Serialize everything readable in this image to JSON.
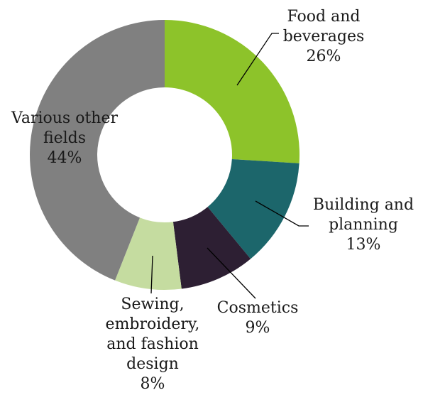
{
  "chart_data": {
    "type": "pie",
    "donut": true,
    "legend": "none",
    "slices": [
      {
        "label": [
          "Food and",
          "beverages"
        ],
        "value": 26,
        "value_label": "26%",
        "color": "#8dc32a"
      },
      {
        "label": [
          "Building and",
          "planning"
        ],
        "value": 13,
        "value_label": "13%",
        "color": "#1c666b"
      },
      {
        "label": [
          "Cosmetics"
        ],
        "value": 9,
        "value_label": "9%",
        "color": "#2d1f33"
      },
      {
        "label": [
          "Sewing,",
          "embroidery,",
          "and fashion",
          "design"
        ],
        "value": 8,
        "value_label": "8%",
        "color": "#c5dca0"
      },
      {
        "label": [
          "Various other",
          "fields"
        ],
        "value": 44,
        "value_label": "44%",
        "color": "#808080"
      }
    ]
  }
}
